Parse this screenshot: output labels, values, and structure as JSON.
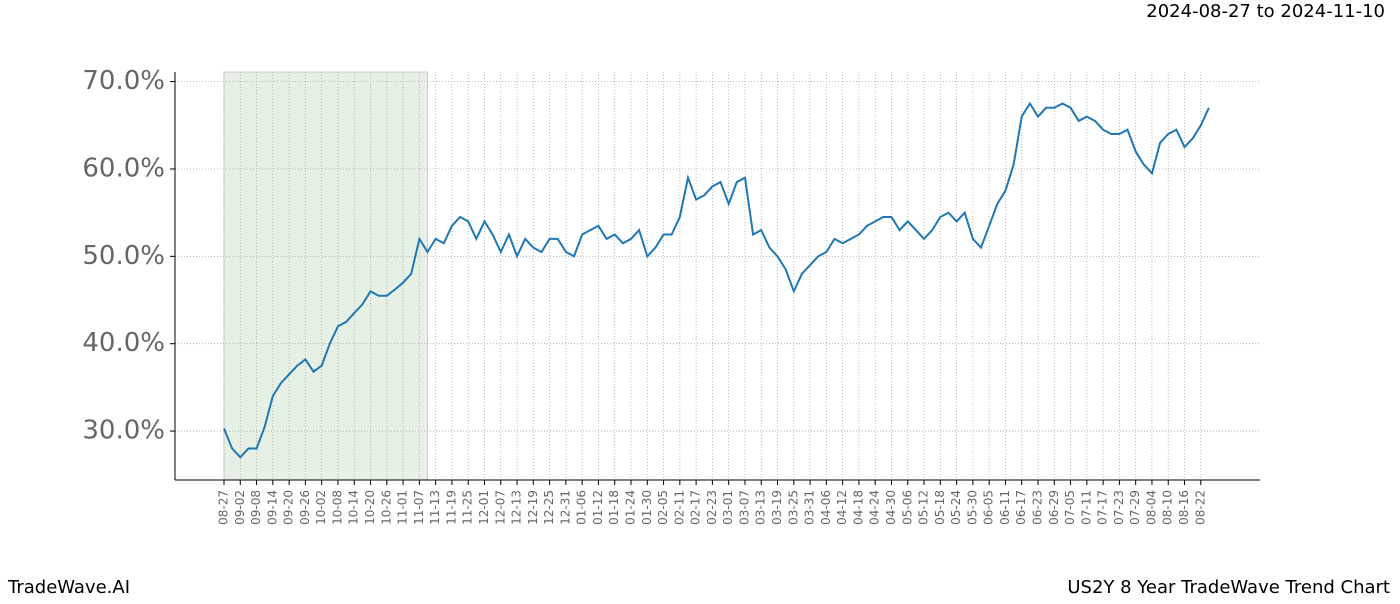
{
  "chart_data": {
    "type": "line",
    "title": "2024-08-27 to 2024-11-10",
    "footer_left": "TradeWave.AI",
    "footer_right": "US2Y 8 Year TradeWave Trend Chart",
    "categories": [
      "08-27",
      null,
      "09-02",
      null,
      "09-08",
      null,
      "09-14",
      null,
      "09-20",
      null,
      "09-26",
      null,
      "10-02",
      null,
      "10-08",
      null,
      "10-14",
      null,
      "10-20",
      null,
      "10-26",
      null,
      "11-01",
      null,
      "11-07",
      null,
      "11-13",
      null,
      "11-19",
      null,
      "11-25",
      null,
      "12-01",
      null,
      "12-07",
      null,
      "12-13",
      null,
      "12-19",
      null,
      "12-25",
      null,
      "12-31",
      null,
      "01-06",
      null,
      "01-12",
      null,
      "01-18",
      null,
      "01-24",
      null,
      "01-30",
      null,
      "02-05",
      null,
      "02-11",
      null,
      "02-17",
      null,
      "02-23",
      null,
      "03-01",
      null,
      "03-07",
      null,
      "03-13",
      null,
      "03-19",
      null,
      "03-25",
      null,
      "03-31",
      null,
      "04-06",
      null,
      "04-12",
      null,
      "04-18",
      null,
      "04-24",
      null,
      "04-30",
      null,
      "05-06",
      null,
      "05-12",
      null,
      "05-18",
      null,
      "05-24",
      null,
      "05-30",
      null,
      "06-05",
      null,
      "06-11",
      null,
      "06-17",
      null,
      "06-23",
      null,
      "06-29",
      null,
      "07-05",
      null,
      "07-11",
      null,
      "07-17",
      null,
      "07-23",
      null,
      "07-29",
      null,
      "08-04",
      null,
      "08-10",
      null,
      "08-16",
      null,
      "08-22",
      null
    ],
    "series": [
      {
        "color": "#1f77b4",
        "values": [
          30.3,
          28,
          27,
          28,
          28,
          30.5,
          34,
          35.5,
          36.5,
          37.5,
          38.2,
          36.8,
          37.5,
          40,
          42,
          42.5,
          43.5,
          44.5,
          46,
          45.5,
          45.5,
          46.2,
          47,
          48,
          52,
          50.5,
          52,
          51.5,
          53.5,
          54.5,
          54,
          52,
          54,
          52.5,
          50.5,
          52.5,
          50,
          52,
          51,
          50.5,
          52,
          52,
          50.5,
          50,
          52.5,
          53,
          53.5,
          52,
          52.5,
          51.5,
          52,
          53,
          50,
          51,
          52.5,
          52.5,
          54.5,
          59,
          56.5,
          57,
          58,
          58.5,
          56,
          58.5,
          59,
          52.5,
          53,
          51,
          50,
          48.5,
          46,
          48,
          49,
          50,
          50.5,
          52,
          51.5,
          52,
          52.5,
          53.5,
          54,
          54.5,
          54.5,
          53,
          54,
          53,
          52,
          53,
          54.5,
          55,
          54,
          55,
          52,
          51,
          53.5,
          56,
          57.5,
          60.5,
          66,
          67.5,
          66,
          67,
          67,
          67.5,
          67,
          65.5,
          66,
          65.5,
          64.5,
          64,
          64,
          64.5,
          62,
          60.5,
          59.5,
          63,
          64,
          64.5,
          62.5,
          63.5,
          65,
          67
        ]
      }
    ],
    "shade": {
      "from": 0,
      "to": 25,
      "color": "#e6f0e4"
    },
    "ylim": [
      24.4,
      71.1
    ],
    "yticks": [
      {
        "value": 30,
        "label": "30.0%"
      },
      {
        "value": 40,
        "label": "40.0%"
      },
      {
        "value": 50,
        "label": "50.0%"
      },
      {
        "value": 60,
        "label": "60.0%"
      },
      {
        "value": 70,
        "label": "70.0%"
      }
    ],
    "grid": true
  }
}
